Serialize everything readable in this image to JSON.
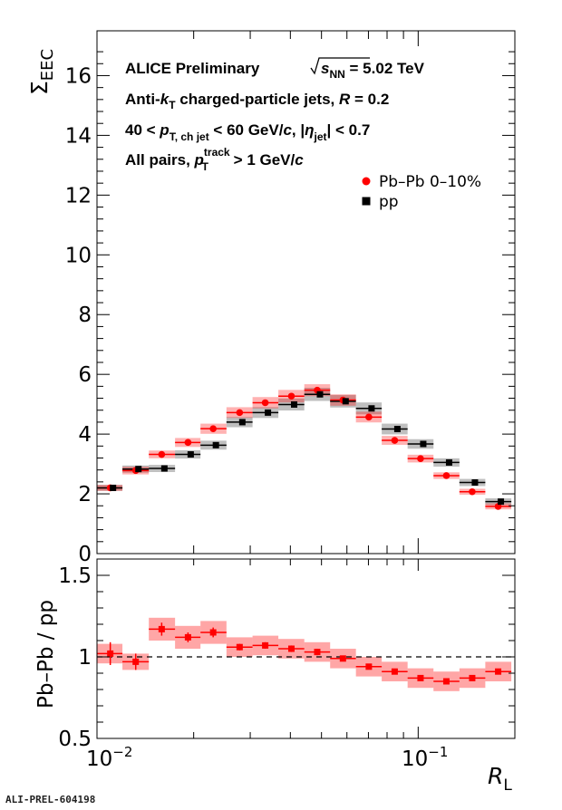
{
  "footer_label": "ALI-PREL-604198",
  "chart_data": [
    {
      "type": "scatter",
      "title": "",
      "xlabel": "R_L",
      "ylabel": "Σ_EEC",
      "xscale": "log",
      "xlim": [
        0.01,
        0.2
      ],
      "ylim": [
        0,
        17.5
      ],
      "yticks": [
        0,
        2,
        4,
        6,
        8,
        10,
        12,
        14,
        16
      ],
      "xtick_labels": [
        "10^-2",
        "10^-1"
      ],
      "legend_position": "top-right",
      "annotations": [
        "ALICE Preliminary",
        "√s_NN = 5.02 TeV",
        "Anti-k_T charged-particle jets, R = 0.2",
        "40 < p_T, ch jet < 60 GeV/c, |η_jet| < 0.7",
        "All pairs, p_T^track > 1 GeV/c"
      ],
      "x_bin_edges": [
        0.01,
        0.012,
        0.0145,
        0.0175,
        0.021,
        0.0253,
        0.0305,
        0.0367,
        0.0442,
        0.0532,
        0.064,
        0.077,
        0.0927,
        0.1116,
        0.1344,
        0.1618,
        0.195
      ],
      "x": [
        0.011,
        0.0132,
        0.0159,
        0.0192,
        0.023,
        0.0278,
        0.0334,
        0.0403,
        0.0485,
        0.0583,
        0.0702,
        0.0845,
        0.1017,
        0.1224,
        0.1473,
        0.1774
      ],
      "series": [
        {
          "name": "Pb–Pb 0–10%",
          "color": "#ff0000",
          "marker": "circle",
          "values": [
            2.2,
            2.78,
            3.32,
            3.72,
            4.18,
            4.72,
            5.05,
            5.27,
            5.47,
            5.14,
            4.57,
            3.79,
            3.18,
            2.61,
            2.07,
            1.58
          ],
          "sys_err": [
            0.1,
            0.13,
            0.13,
            0.15,
            0.17,
            0.18,
            0.19,
            0.21,
            0.2,
            0.19,
            0.18,
            0.15,
            0.13,
            0.11,
            0.1,
            0.1
          ]
        },
        {
          "name": "pp",
          "color": "#000000",
          "marker": "square",
          "values": [
            2.2,
            2.83,
            2.85,
            3.32,
            3.63,
            4.4,
            4.72,
            4.99,
            5.33,
            5.1,
            4.86,
            4.17,
            3.67,
            3.05,
            2.38,
            1.74
          ],
          "sys_err": [
            0.1,
            0.12,
            0.12,
            0.14,
            0.15,
            0.17,
            0.18,
            0.2,
            0.22,
            0.21,
            0.2,
            0.18,
            0.16,
            0.14,
            0.12,
            0.11
          ]
        }
      ]
    },
    {
      "type": "scatter",
      "title": "",
      "xlabel": "R_L",
      "ylabel": "Pb–Pb / pp",
      "xscale": "log",
      "xlim": [
        0.01,
        0.2
      ],
      "ylim": [
        0.5,
        1.6
      ],
      "yticks": [
        0.5,
        1,
        1.5
      ],
      "reference_line": 1,
      "series": [
        {
          "name": "Pb–Pb / pp",
          "color": "#ff0000",
          "marker": "square",
          "values": [
            1.02,
            0.97,
            1.17,
            1.12,
            1.15,
            1.06,
            1.07,
            1.05,
            1.03,
            0.99,
            0.94,
            0.91,
            0.87,
            0.85,
            0.87,
            0.91
          ],
          "sys_err": [
            0.06,
            0.05,
            0.07,
            0.07,
            0.07,
            0.06,
            0.06,
            0.06,
            0.06,
            0.06,
            0.06,
            0.06,
            0.06,
            0.06,
            0.06,
            0.06
          ],
          "stat_err": [
            0.07,
            0.05,
            0.04,
            0.03,
            0.03,
            0.02,
            0.02,
            0.02,
            0.02,
            0.01,
            0.01,
            0.01,
            0.01,
            0.01,
            0.01,
            0.01
          ]
        }
      ]
    }
  ]
}
